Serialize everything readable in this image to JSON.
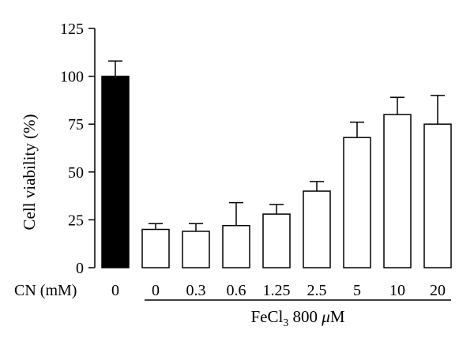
{
  "chart_data": {
    "type": "bar",
    "ylabel": "Cell viability (%)",
    "yticks": [
      0,
      25,
      50,
      75,
      100,
      125
    ],
    "ylim": [
      0,
      125
    ],
    "x_row_label": "CN (mM)",
    "categories": [
      "0",
      "0",
      "0.3",
      "0.6",
      "1.25",
      "2.5",
      "5",
      "10",
      "20"
    ],
    "values": [
      100,
      20,
      19,
      22,
      28,
      40,
      68,
      80,
      75
    ],
    "errors": [
      8,
      3,
      4,
      12,
      5,
      5,
      8,
      9,
      15
    ],
    "bar_fill": [
      "#000000",
      "#ffffff",
      "#ffffff",
      "#ffffff",
      "#ffffff",
      "#ffffff",
      "#ffffff",
      "#ffffff",
      "#ffffff"
    ],
    "group_label": {
      "prefix": "FeCl",
      "subscript": "3",
      "suffix": " 800 ",
      "unit_mu": "μ",
      "unit_rest": "M",
      "applies_to_categories": [
        1,
        8
      ]
    }
  }
}
